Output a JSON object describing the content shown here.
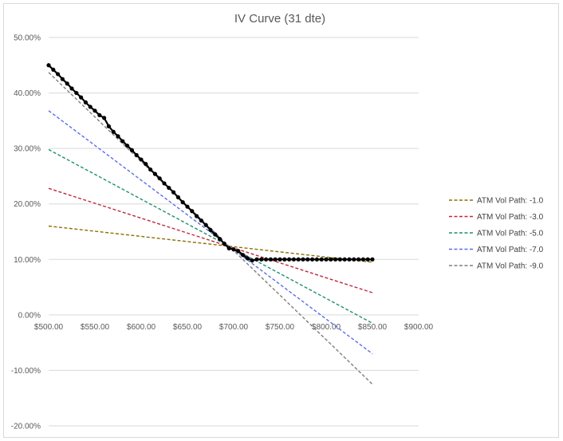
{
  "chart_data": {
    "type": "line",
    "title": "IV Curve  (31 dte)",
    "xlabel": "",
    "ylabel": "",
    "xlim": [
      500,
      900
    ],
    "ylim": [
      -0.2,
      0.5
    ],
    "x_ticks": [
      500,
      550,
      600,
      650,
      700,
      750,
      800,
      850,
      900
    ],
    "x_tick_labels": [
      "$500.00",
      "$550.00",
      "$600.00",
      "$650.00",
      "$700.00",
      "$750.00",
      "$800.00",
      "$850.00",
      "$900.00"
    ],
    "y_ticks": [
      -0.2,
      -0.1,
      0.0,
      0.1,
      0.2,
      0.3,
      0.4,
      0.5
    ],
    "y_tick_labels": [
      "-20.00%",
      "-10.00%",
      "0.00%",
      "10.00%",
      "20.00%",
      "30.00%",
      "40.00%",
      "50.00%"
    ],
    "grid": "horizontal",
    "legend_position": "right",
    "series": [
      {
        "kind": "markers",
        "color": "#000000",
        "x": [
          500,
          505,
          510,
          515,
          520,
          525,
          530,
          535,
          540,
          545,
          550,
          555,
          560,
          565,
          570,
          575,
          580,
          585,
          590,
          595,
          600,
          605,
          610,
          615,
          620,
          625,
          630,
          635,
          640,
          645,
          650,
          655,
          660,
          665,
          670,
          675,
          680,
          685,
          690,
          695,
          700,
          705,
          710,
          715,
          720,
          725,
          730,
          735,
          740,
          745,
          750,
          755,
          760,
          765,
          770,
          775,
          780,
          785,
          790,
          795,
          800,
          805,
          810,
          815,
          820,
          825,
          830,
          835,
          840,
          845,
          850
        ],
        "y": [
          0.45,
          0.442,
          0.434,
          0.425,
          0.417,
          0.408,
          0.4,
          0.392,
          0.383,
          0.375,
          0.368,
          0.36,
          0.355,
          0.34,
          0.33,
          0.322,
          0.313,
          0.305,
          0.297,
          0.288,
          0.28,
          0.272,
          0.262,
          0.254,
          0.246,
          0.237,
          0.229,
          0.221,
          0.212,
          0.203,
          0.195,
          0.187,
          0.178,
          0.17,
          0.162,
          0.153,
          0.145,
          0.137,
          0.128,
          0.12,
          0.118,
          0.115,
          0.108,
          0.102,
          0.098,
          0.1,
          0.1,
          0.1,
          0.1,
          0.1,
          0.1,
          0.1,
          0.1,
          0.1,
          0.1,
          0.1,
          0.1,
          0.1,
          0.1,
          0.1,
          0.1,
          0.1,
          0.1,
          0.1,
          0.1,
          0.1,
          0.1,
          0.1,
          0.1,
          0.1,
          0.1
        ]
      },
      {
        "name": "ATM Vol Path: -1.0",
        "color": "#8b7000",
        "dash": true,
        "x": [
          500,
          850
        ],
        "y": [
          0.16,
          0.095
        ]
      },
      {
        "name": "ATM Vol Path: -3.0",
        "color": "#c0283c",
        "dash": true,
        "x": [
          500,
          850
        ],
        "y": [
          0.228,
          0.04
        ]
      },
      {
        "name": "ATM Vol Path: -5.0",
        "color": "#1f8f6e",
        "dash": true,
        "x": [
          500,
          850
        ],
        "y": [
          0.298,
          -0.015
        ]
      },
      {
        "name": "ATM Vol Path: -7.0",
        "color": "#5b6ee8",
        "dash": true,
        "x": [
          500,
          850
        ],
        "y": [
          0.368,
          -0.07
        ]
      },
      {
        "name": "ATM Vol Path: -9.0",
        "color": "#7f7f7f",
        "dash": true,
        "x": [
          500,
          850
        ],
        "y": [
          0.437,
          -0.125
        ]
      }
    ]
  }
}
